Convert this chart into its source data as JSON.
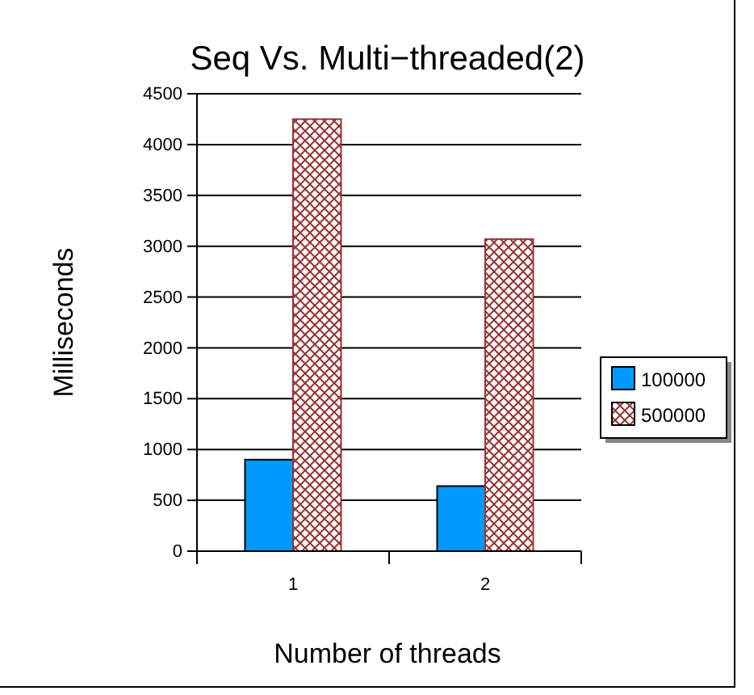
{
  "chart_data": {
    "type": "bar",
    "title": "Seq Vs. Multi−threaded(2)",
    "xlabel": "Number of threads",
    "ylabel": "Milliseconds",
    "categories": [
      "1",
      "2"
    ],
    "series": [
      {
        "name": "100000",
        "color": "#0099ff",
        "values": [
          900,
          640
        ]
      },
      {
        "name": "500000",
        "color": "#993333",
        "values": [
          4250,
          3070
        ]
      }
    ],
    "ylim": [
      0,
      4500
    ],
    "yticks": [
      0,
      500,
      1000,
      1500,
      2000,
      2500,
      3000,
      3500,
      4000,
      4500
    ],
    "grid": "y",
    "legend": "right"
  }
}
